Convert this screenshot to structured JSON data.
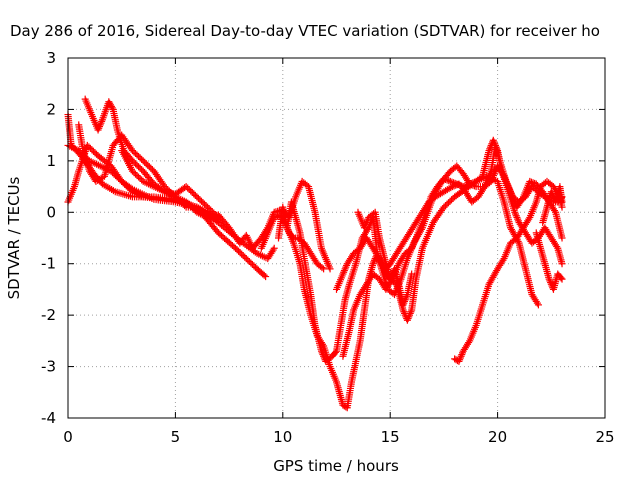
{
  "chart_data": {
    "type": "scatter",
    "title": "Day 286 of 2016, Sidereal Day-to-day VTEC variation (SDTVAR) for receiver ho",
    "xlabel": "GPS time / hours",
    "ylabel": "SDTVAR / TECUs",
    "xlim": [
      0,
      25
    ],
    "ylim": [
      -4,
      3
    ],
    "xticks": [
      0,
      5,
      10,
      15,
      20,
      25
    ],
    "yticks": [
      -4,
      -3,
      -2,
      -1,
      0,
      1,
      2,
      3
    ],
    "grid": true,
    "marker": "plus",
    "color": "#ff0000",
    "tracks": [
      [
        [
          0.0,
          1.9
        ],
        [
          0.15,
          1.3
        ],
        [
          0.4,
          1.2
        ],
        [
          0.8,
          1.0
        ],
        [
          1.2,
          0.75
        ],
        [
          1.6,
          0.55
        ],
        [
          2.2,
          0.4
        ],
        [
          3.0,
          0.3
        ],
        [
          4.0,
          0.3
        ],
        [
          5.0,
          0.25
        ],
        [
          6.0,
          0.1
        ],
        [
          7.0,
          -0.2
        ],
        [
          8.0,
          -0.55
        ],
        [
          8.8,
          -0.8
        ],
        [
          9.3,
          -0.9
        ],
        [
          9.6,
          -0.7
        ]
      ],
      [
        [
          0.0,
          0.2
        ],
        [
          0.3,
          0.5
        ],
        [
          0.5,
          0.8
        ],
        [
          0.9,
          1.3
        ],
        [
          1.4,
          1.1
        ],
        [
          2.0,
          0.9
        ],
        [
          2.5,
          0.6
        ],
        [
          3.0,
          0.4
        ],
        [
          3.5,
          0.3
        ],
        [
          4.5,
          0.25
        ],
        [
          5.5,
          0.2
        ],
        [
          6.2,
          0.0
        ],
        [
          7.0,
          -0.4
        ],
        [
          7.8,
          -0.7
        ],
        [
          8.3,
          -0.9
        ],
        [
          8.8,
          -1.1
        ],
        [
          9.2,
          -1.25
        ]
      ],
      [
        [
          0.0,
          1.3
        ],
        [
          0.5,
          1.2
        ],
        [
          1.0,
          1.0
        ],
        [
          1.5,
          0.9
        ],
        [
          2.0,
          0.8
        ],
        [
          2.5,
          0.6
        ],
        [
          3.0,
          0.45
        ],
        [
          4.0,
          0.25
        ],
        [
          5.0,
          0.2
        ],
        [
          6.0,
          0.1
        ],
        [
          6.5,
          -0.05
        ],
        [
          7.0,
          -0.15
        ]
      ],
      [
        [
          0.5,
          1.7
        ],
        [
          0.7,
          1.2
        ],
        [
          1.0,
          0.8
        ],
        [
          1.3,
          0.6
        ],
        [
          1.7,
          0.7
        ],
        [
          2.1,
          1.3
        ],
        [
          2.5,
          1.5
        ],
        [
          3.0,
          1.2
        ],
        [
          3.5,
          1.0
        ],
        [
          4.0,
          0.8
        ],
        [
          4.5,
          0.5
        ],
        [
          5.0,
          0.3
        ],
        [
          5.5,
          0.1
        ],
        [
          6.0,
          0.1
        ],
        [
          6.5,
          0.0
        ],
        [
          7.0,
          -0.15
        ]
      ],
      [
        [
          0.8,
          2.2
        ],
        [
          1.1,
          1.9
        ],
        [
          1.4,
          1.6
        ],
        [
          1.6,
          1.8
        ],
        [
          1.9,
          2.15
        ],
        [
          2.1,
          2.0
        ],
        [
          2.3,
          1.6
        ],
        [
          2.6,
          1.2
        ],
        [
          3.0,
          1.0
        ],
        [
          3.5,
          0.8
        ],
        [
          4.0,
          0.55
        ],
        [
          4.5,
          0.4
        ],
        [
          5.0,
          0.35
        ],
        [
          5.5,
          0.5
        ],
        [
          6.0,
          0.3
        ],
        [
          6.5,
          0.1
        ],
        [
          7.0,
          -0.1
        ]
      ],
      [
        [
          2.5,
          1.2
        ],
        [
          3.0,
          0.8
        ],
        [
          3.5,
          0.6
        ],
        [
          4.0,
          0.5
        ],
        [
          4.5,
          0.4
        ],
        [
          5.0,
          0.3
        ],
        [
          5.5,
          0.2
        ],
        [
          6.0,
          0.0
        ],
        [
          6.5,
          -0.1
        ],
        [
          7.0,
          -0.05
        ],
        [
          7.5,
          -0.3
        ],
        [
          8.0,
          -0.6
        ],
        [
          8.3,
          -0.45
        ],
        [
          8.6,
          -0.7
        ],
        [
          9.0,
          -0.5
        ],
        [
          9.3,
          -0.3
        ],
        [
          9.6,
          0.0
        ],
        [
          10.0,
          0.05
        ],
        [
          10.3,
          -0.1
        ],
        [
          10.6,
          0.3
        ],
        [
          10.9,
          0.6
        ],
        [
          11.2,
          0.5
        ],
        [
          11.5,
          0.0
        ],
        [
          11.8,
          -0.7
        ],
        [
          12.2,
          -1.1
        ]
      ],
      [
        [
          9.0,
          -0.7
        ],
        [
          9.3,
          -0.4
        ],
        [
          9.6,
          -0.1
        ],
        [
          9.9,
          -0.05
        ],
        [
          10.1,
          -0.2
        ],
        [
          10.3,
          -0.4
        ],
        [
          10.5,
          -0.5
        ],
        [
          10.7,
          -0.5
        ],
        [
          11.0,
          -0.6
        ],
        [
          11.3,
          -0.8
        ],
        [
          11.6,
          -1.0
        ],
        [
          11.9,
          -1.1
        ]
      ],
      [
        [
          9.8,
          -0.5
        ],
        [
          10.0,
          0.1
        ],
        [
          10.2,
          -0.3
        ],
        [
          10.4,
          0.2
        ],
        [
          10.6,
          -0.1
        ],
        [
          10.8,
          -0.4
        ],
        [
          11.0,
          -0.9
        ],
        [
          11.3,
          -1.6
        ],
        [
          11.5,
          -2.2
        ],
        [
          11.8,
          -2.7
        ],
        [
          12.0,
          -2.9
        ],
        [
          12.3,
          -2.8
        ],
        [
          12.5,
          -2.7
        ],
        [
          12.7,
          -2.2
        ],
        [
          12.9,
          -1.7
        ],
        [
          13.1,
          -1.4
        ],
        [
          13.4,
          -1.0
        ],
        [
          13.7,
          -0.5
        ],
        [
          14.0,
          -0.3
        ],
        [
          14.2,
          -0.1
        ],
        [
          14.4,
          -0.8
        ],
        [
          14.6,
          -1.0
        ],
        [
          14.8,
          -1.2
        ],
        [
          15.0,
          -1.3
        ],
        [
          15.3,
          -1.4
        ],
        [
          15.6,
          -1.9
        ],
        [
          15.8,
          -2.1
        ],
        [
          16.0,
          -1.9
        ],
        [
          16.2,
          -1.3
        ],
        [
          16.5,
          -0.7
        ],
        [
          17.0,
          -0.2
        ],
        [
          17.5,
          0.1
        ],
        [
          18.0,
          0.3
        ],
        [
          18.5,
          0.45
        ],
        [
          19.0,
          0.6
        ],
        [
          19.5,
          0.7
        ],
        [
          20.0,
          0.6
        ],
        [
          20.3,
          0.2
        ],
        [
          20.6,
          -0.3
        ],
        [
          21.0,
          -0.6
        ],
        [
          21.3,
          -1.1
        ],
        [
          21.6,
          -1.6
        ],
        [
          21.9,
          -1.8
        ]
      ],
      [
        [
          10.2,
          -0.3
        ],
        [
          10.5,
          -0.6
        ],
        [
          10.8,
          -1.0
        ],
        [
          11.0,
          -1.5
        ],
        [
          11.3,
          -2.0
        ],
        [
          11.6,
          -2.4
        ],
        [
          11.9,
          -2.6
        ],
        [
          12.2,
          -3.0
        ],
        [
          12.5,
          -3.3
        ],
        [
          12.7,
          -3.6
        ],
        [
          12.8,
          -3.75
        ],
        [
          13.0,
          -3.8
        ],
        [
          13.2,
          -3.3
        ],
        [
          13.4,
          -2.9
        ],
        [
          13.6,
          -2.5
        ],
        [
          13.8,
          -1.9
        ],
        [
          14.0,
          -1.3
        ],
        [
          14.2,
          -1.0
        ],
        [
          14.4,
          -0.8
        ],
        [
          14.6,
          -1.1
        ],
        [
          14.9,
          -1.5
        ],
        [
          15.2,
          -1.6
        ],
        [
          15.5,
          -1.3
        ],
        [
          15.8,
          -0.9
        ],
        [
          16.1,
          -0.6
        ],
        [
          16.5,
          -0.3
        ],
        [
          17.0,
          0.3
        ],
        [
          17.4,
          0.6
        ],
        [
          17.8,
          0.8
        ],
        [
          18.1,
          0.9
        ],
        [
          18.4,
          0.75
        ],
        [
          18.7,
          0.55
        ],
        [
          19.0,
          0.5
        ],
        [
          19.4,
          0.5
        ],
        [
          19.7,
          0.6
        ],
        [
          20.0,
          0.9
        ],
        [
          20.3,
          0.7
        ],
        [
          20.6,
          0.4
        ],
        [
          20.9,
          0.1
        ],
        [
          21.2,
          0.3
        ],
        [
          21.5,
          0.6
        ],
        [
          21.8,
          0.55
        ],
        [
          22.1,
          0.4
        ],
        [
          22.4,
          0.2
        ],
        [
          22.7,
          0.0
        ],
        [
          23.0,
          -0.5
        ]
      ],
      [
        [
          12.5,
          -1.5
        ],
        [
          12.8,
          -1.2
        ],
        [
          13.0,
          -1.0
        ],
        [
          13.3,
          -0.8
        ],
        [
          13.6,
          -0.7
        ],
        [
          13.9,
          -0.5
        ],
        [
          14.2,
          -0.7
        ],
        [
          14.5,
          -0.9
        ],
        [
          14.8,
          -1.1
        ],
        [
          15.0,
          -1.0
        ],
        [
          15.3,
          -0.8
        ],
        [
          15.6,
          -0.6
        ],
        [
          15.9,
          -0.4
        ],
        [
          16.2,
          -0.2
        ],
        [
          16.5,
          0.0
        ],
        [
          16.8,
          0.2
        ],
        [
          17.1,
          0.3
        ],
        [
          17.5,
          0.4
        ],
        [
          17.9,
          0.5
        ],
        [
          18.2,
          0.55
        ],
        [
          18.5,
          0.4
        ],
        [
          18.8,
          0.2
        ],
        [
          19.1,
          0.3
        ],
        [
          19.4,
          0.5
        ],
        [
          19.7,
          0.8
        ],
        [
          19.9,
          1.3
        ],
        [
          20.1,
          1.0
        ],
        [
          20.4,
          0.6
        ],
        [
          20.7,
          0.3
        ],
        [
          21.0,
          0.2
        ],
        [
          21.3,
          0.3
        ],
        [
          21.6,
          0.5
        ],
        [
          21.9,
          0.4
        ],
        [
          22.2,
          0.3
        ],
        [
          22.5,
          0.2
        ],
        [
          22.8,
          0.2
        ],
        [
          23.0,
          0.3
        ]
      ],
      [
        [
          12.8,
          -2.8
        ],
        [
          13.1,
          -2.3
        ],
        [
          13.3,
          -1.9
        ],
        [
          13.6,
          -1.6
        ],
        [
          13.9,
          -1.4
        ],
        [
          14.2,
          -1.2
        ],
        [
          14.5,
          -1.3
        ],
        [
          14.8,
          -1.5
        ],
        [
          15.1,
          -1.3
        ],
        [
          15.4,
          -1.0
        ],
        [
          15.7,
          -0.8
        ],
        [
          16.0,
          -0.7
        ],
        [
          16.3,
          -0.4
        ],
        [
          16.6,
          -0.1
        ],
        [
          16.9,
          0.3
        ],
        [
          17.2,
          0.5
        ],
        [
          17.5,
          0.65
        ],
        [
          17.8,
          0.6
        ],
        [
          18.1,
          0.55
        ],
        [
          18.4,
          0.5
        ],
        [
          18.7,
          0.55
        ],
        [
          19.0,
          0.6
        ],
        [
          19.3,
          0.7
        ],
        [
          19.6,
          1.2
        ],
        [
          19.8,
          1.4
        ],
        [
          20.0,
          1.2
        ],
        [
          20.2,
          0.8
        ],
        [
          20.5,
          0.4
        ],
        [
          20.8,
          0.0
        ],
        [
          21.0,
          -0.2
        ],
        [
          21.3,
          -0.4
        ],
        [
          21.6,
          -0.6
        ],
        [
          21.9,
          -0.5
        ],
        [
          22.2,
          -0.3
        ],
        [
          22.5,
          -0.5
        ],
        [
          22.8,
          -0.7
        ],
        [
          23.0,
          -1.0
        ]
      ],
      [
        [
          13.5,
          0.0
        ],
        [
          13.8,
          -0.3
        ],
        [
          14.0,
          -0.1
        ],
        [
          14.3,
          0.0
        ],
        [
          14.5,
          -0.5
        ],
        [
          14.8,
          -1.0
        ],
        [
          15.0,
          -1.3
        ],
        [
          15.2,
          -1.1
        ],
        [
          15.4,
          -1.4
        ],
        [
          15.6,
          -1.8
        ],
        [
          15.8,
          -1.6
        ],
        [
          16.0,
          -1.2
        ]
      ],
      [
        [
          18.0,
          -2.85
        ],
        [
          18.2,
          -2.9
        ],
        [
          18.4,
          -2.7
        ],
        [
          18.7,
          -2.5
        ],
        [
          19.0,
          -2.2
        ],
        [
          19.3,
          -1.8
        ],
        [
          19.6,
          -1.4
        ],
        [
          20.0,
          -1.1
        ],
        [
          20.3,
          -0.9
        ],
        [
          20.6,
          -0.6
        ],
        [
          20.9,
          -0.5
        ],
        [
          21.2,
          -0.3
        ],
        [
          21.5,
          -0.1
        ],
        [
          21.8,
          0.2
        ],
        [
          22.0,
          0.5
        ],
        [
          22.3,
          0.6
        ],
        [
          22.6,
          0.5
        ],
        [
          22.9,
          0.3
        ],
        [
          23.0,
          0.1
        ]
      ],
      [
        [
          21.8,
          -0.4
        ],
        [
          22.0,
          -0.7
        ],
        [
          22.2,
          -1.0
        ],
        [
          22.4,
          -1.3
        ],
        [
          22.6,
          -1.5
        ],
        [
          22.8,
          -1.2
        ],
        [
          23.0,
          -1.3
        ]
      ],
      [
        [
          22.1,
          -0.2
        ],
        [
          22.3,
          0.1
        ],
        [
          22.5,
          0.4
        ],
        [
          22.7,
          0.2
        ],
        [
          22.9,
          0.5
        ],
        [
          23.0,
          0.2
        ]
      ]
    ]
  }
}
